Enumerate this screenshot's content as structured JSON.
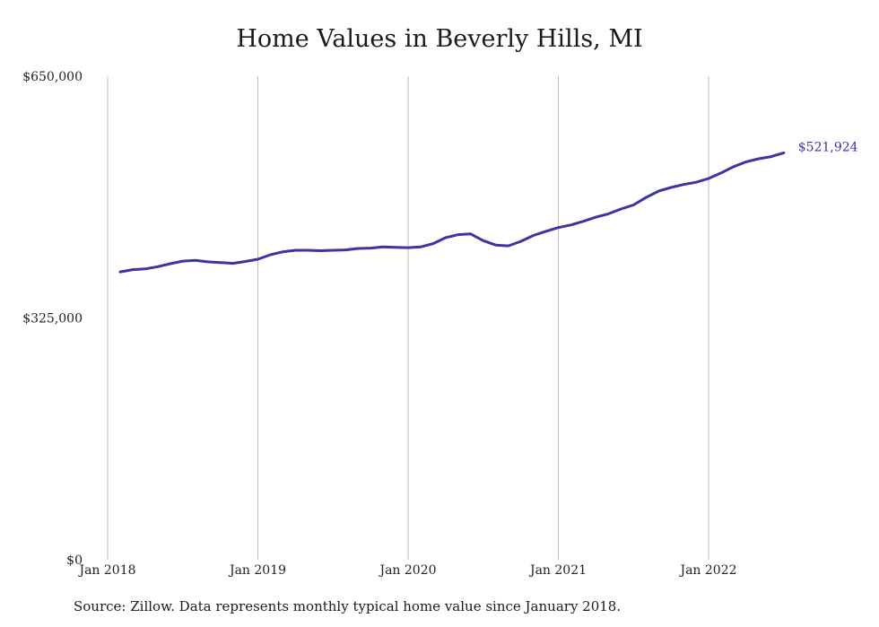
{
  "chart_data": {
    "type": "line",
    "title": "Home Values in Beverly Hills, MI",
    "xlabel": "",
    "ylabel": "",
    "ylim": [
      0,
      650000
    ],
    "y_ticks": [
      0,
      325000,
      650000
    ],
    "y_tick_labels": [
      "$0",
      "$325,000",
      "$650,000"
    ],
    "x_range": [
      "2018-01",
      "2022-12"
    ],
    "x_tick_labels": [
      "Jan 2018",
      "Jan 2019",
      "Jan 2020",
      "Jan 2021",
      "Jan 2022"
    ],
    "x_ticks": [
      "2018-01",
      "2019-01",
      "2020-01",
      "2021-01",
      "2022-01"
    ],
    "grid": "vertical",
    "line_color": "#3a35a0",
    "end_label": "$521,924",
    "series": [
      {
        "x": [
          "2018-02",
          "2018-03",
          "2018-04",
          "2018-05",
          "2018-06",
          "2018-07",
          "2018-08",
          "2018-09",
          "2018-10",
          "2018-11",
          "2018-12",
          "2019-01",
          "2019-02",
          "2019-03",
          "2019-04",
          "2019-05",
          "2019-06",
          "2019-07",
          "2019-08",
          "2019-09",
          "2019-10",
          "2019-11",
          "2019-12",
          "2020-01",
          "2020-02",
          "2020-03",
          "2020-04",
          "2020-05",
          "2020-06",
          "2020-07",
          "2020-08",
          "2020-09",
          "2020-10",
          "2020-11",
          "2020-12",
          "2021-01",
          "2021-02",
          "2021-03",
          "2021-04",
          "2021-05",
          "2021-06",
          "2021-07",
          "2021-08",
          "2021-09",
          "2021-10",
          "2021-11",
          "2021-12",
          "2022-01",
          "2022-02",
          "2022-03",
          "2022-04",
          "2022-05",
          "2022-06",
          "2022-07"
        ],
        "values": [
          387000,
          390000,
          391000,
          394000,
          398000,
          401500,
          402500,
          400500,
          399500,
          398500,
          401000,
          404000,
          410000,
          414000,
          416000,
          416000,
          415500,
          416000,
          416500,
          418500,
          419000,
          420500,
          420000,
          419500,
          420500,
          425000,
          433000,
          437000,
          438000,
          429000,
          423000,
          422000,
          428000,
          436000,
          441500,
          446500,
          450000,
          455000,
          460500,
          465000,
          471500,
          477000,
          487000,
          495500,
          500500,
          504500,
          507500,
          512500,
          520000,
          528500,
          535000,
          539000,
          542000,
          547000
        ]
      }
    ],
    "note": "Source: Zillow. Data represents monthly typical home value since January 2018."
  }
}
